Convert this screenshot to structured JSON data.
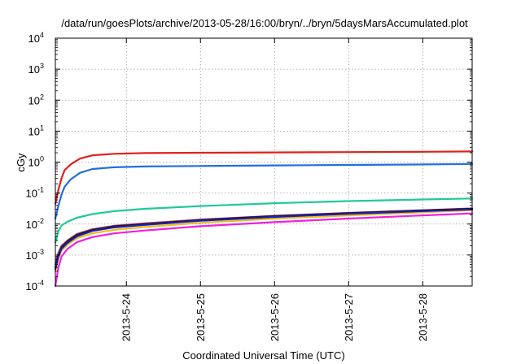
{
  "chart_data": {
    "type": "line",
    "title": "/data/run/goesPlots/archive/2013-05-28/16:00/bryn/../bryn/5daysMarsAccumulated.plot",
    "xlabel": "Coordinated Universal Time (UTC)",
    "ylabel": "cGy",
    "y_scale": "log",
    "ylim": [
      0.0001,
      10000
    ],
    "xlim": [
      "2013-05-23T01:00",
      "2013-05-28T16:00"
    ],
    "grid": true,
    "legend": "none",
    "y_ticks": [
      {
        "base": "10",
        "exp": "-4"
      },
      {
        "base": "10",
        "exp": "-3"
      },
      {
        "base": "10",
        "exp": "-2"
      },
      {
        "base": "10",
        "exp": "-1"
      },
      {
        "base": "10",
        "exp": "0"
      },
      {
        "base": "10",
        "exp": "1"
      },
      {
        "base": "10",
        "exp": "2"
      },
      {
        "base": "10",
        "exp": "3"
      },
      {
        "base": "10",
        "exp": "4"
      }
    ],
    "x_ticks": [
      {
        "label": "2013-5-24",
        "date": "2013-05-24T00:00"
      },
      {
        "label": "2013-5-25",
        "date": "2013-05-25T00:00"
      },
      {
        "label": "2013-5-26",
        "date": "2013-05-26T00:00"
      },
      {
        "label": "2013-5-27",
        "date": "2013-05-27T00:00"
      },
      {
        "label": "2013-5-28",
        "date": "2013-05-28T00:00"
      }
    ],
    "series": [
      {
        "color": "#e3201c",
        "points": [
          [
            "2013-05-23T01:00",
            0.045
          ],
          [
            "2013-05-23T02:00",
            0.13
          ],
          [
            "2013-05-23T03:00",
            0.3
          ],
          [
            "2013-05-23T04:00",
            0.55
          ],
          [
            "2013-05-23T06:00",
            0.85
          ],
          [
            "2013-05-23T09:00",
            1.3
          ],
          [
            "2013-05-23T13:00",
            1.65
          ],
          [
            "2013-05-23T20:00",
            1.85
          ],
          [
            "2013-05-24T06:00",
            1.95
          ],
          [
            "2013-05-25T00:00",
            2.0
          ],
          [
            "2013-05-26T00:00",
            2.05
          ],
          [
            "2013-05-27T00:00",
            2.1
          ],
          [
            "2013-05-28T00:00",
            2.15
          ],
          [
            "2013-05-28T16:00",
            2.2
          ]
        ]
      },
      {
        "color": "#1f6fe0",
        "points": [
          [
            "2013-05-23T01:00",
            0.015
          ],
          [
            "2013-05-23T02:00",
            0.04
          ],
          [
            "2013-05-23T03:00",
            0.09
          ],
          [
            "2013-05-23T04:00",
            0.16
          ],
          [
            "2013-05-23T06:00",
            0.28
          ],
          [
            "2013-05-23T09:00",
            0.45
          ],
          [
            "2013-05-23T13:00",
            0.6
          ],
          [
            "2013-05-23T20:00",
            0.68
          ],
          [
            "2013-05-24T06:00",
            0.72
          ],
          [
            "2013-05-25T00:00",
            0.75
          ],
          [
            "2013-05-26T00:00",
            0.78
          ],
          [
            "2013-05-27T00:00",
            0.81
          ],
          [
            "2013-05-28T00:00",
            0.84
          ],
          [
            "2013-05-28T16:00",
            0.87
          ]
        ]
      },
      {
        "color": "#20c99a",
        "points": [
          [
            "2013-05-23T01:00",
            0.0025
          ],
          [
            "2013-05-23T02:00",
            0.006
          ],
          [
            "2013-05-23T03:00",
            0.009
          ],
          [
            "2013-05-23T05:00",
            0.012
          ],
          [
            "2013-05-23T08:00",
            0.016
          ],
          [
            "2013-05-23T13:00",
            0.021
          ],
          [
            "2013-05-23T20:00",
            0.026
          ],
          [
            "2013-05-24T06:00",
            0.031
          ],
          [
            "2013-05-25T00:00",
            0.038
          ],
          [
            "2013-05-26T00:00",
            0.047
          ],
          [
            "2013-05-27T00:00",
            0.055
          ],
          [
            "2013-05-28T00:00",
            0.062
          ],
          [
            "2013-05-28T16:00",
            0.067
          ]
        ]
      },
      {
        "color": "#e8c020",
        "points": [
          [
            "2013-05-23T01:00",
            0.0003
          ],
          [
            "2013-05-23T02:00",
            0.0008
          ],
          [
            "2013-05-23T03:00",
            0.0014
          ],
          [
            "2013-05-23T05:00",
            0.0022
          ],
          [
            "2013-05-23T08:00",
            0.0035
          ],
          [
            "2013-05-23T13:00",
            0.005
          ],
          [
            "2013-05-23T20:00",
            0.0065
          ],
          [
            "2013-05-24T06:00",
            0.008
          ],
          [
            "2013-05-25T00:00",
            0.011
          ],
          [
            "2013-05-26T00:00",
            0.015
          ],
          [
            "2013-05-27T00:00",
            0.019
          ],
          [
            "2013-05-28T00:00",
            0.024
          ],
          [
            "2013-05-28T16:00",
            0.028
          ]
        ]
      },
      {
        "color": "#f020e0",
        "points": [
          [
            "2013-05-23T01:00",
            0.0001
          ],
          [
            "2013-05-23T02:00",
            0.0004
          ],
          [
            "2013-05-23T03:00",
            0.0009
          ],
          [
            "2013-05-23T05:00",
            0.0016
          ],
          [
            "2013-05-23T08:00",
            0.0026
          ],
          [
            "2013-05-23T13:00",
            0.0038
          ],
          [
            "2013-05-23T20:00",
            0.005
          ],
          [
            "2013-05-24T06:00",
            0.0062
          ],
          [
            "2013-05-25T00:00",
            0.0085
          ],
          [
            "2013-05-26T00:00",
            0.0115
          ],
          [
            "2013-05-27T00:00",
            0.015
          ],
          [
            "2013-05-28T00:00",
            0.019
          ],
          [
            "2013-05-28T16:00",
            0.022
          ]
        ]
      },
      {
        "color": "#c04080",
        "points": [
          [
            "2013-05-23T01:00",
            0.0005
          ],
          [
            "2013-05-23T02:00",
            0.0012
          ],
          [
            "2013-05-23T03:00",
            0.002
          ],
          [
            "2013-05-23T05:00",
            0.003
          ],
          [
            "2013-05-23T08:00",
            0.0048
          ],
          [
            "2013-05-23T13:00",
            0.0068
          ],
          [
            "2013-05-23T20:00",
            0.0088
          ],
          [
            "2013-05-24T06:00",
            0.0105
          ],
          [
            "2013-05-25T00:00",
            0.014
          ],
          [
            "2013-05-26T00:00",
            0.0185
          ],
          [
            "2013-05-27T00:00",
            0.023
          ],
          [
            "2013-05-28T00:00",
            0.028
          ],
          [
            "2013-05-28T16:00",
            0.032
          ]
        ]
      },
      {
        "color": "#1a1a1a",
        "points": [
          [
            "2013-05-23T01:00",
            0.0004
          ],
          [
            "2013-05-23T02:00",
            0.001
          ],
          [
            "2013-05-23T03:00",
            0.0018
          ],
          [
            "2013-05-23T05:00",
            0.0028
          ],
          [
            "2013-05-23T08:00",
            0.0045
          ],
          [
            "2013-05-23T13:00",
            0.0065
          ],
          [
            "2013-05-23T20:00",
            0.0084
          ],
          [
            "2013-05-24T06:00",
            0.01
          ],
          [
            "2013-05-25T00:00",
            0.0135
          ],
          [
            "2013-05-26T00:00",
            0.018
          ],
          [
            "2013-05-27T00:00",
            0.0225
          ],
          [
            "2013-05-28T00:00",
            0.0275
          ],
          [
            "2013-05-28T16:00",
            0.031
          ]
        ]
      },
      {
        "color": "#2020b0",
        "points": [
          [
            "2013-05-23T01:00",
            0.00035
          ],
          [
            "2013-05-23T02:00",
            0.0009
          ],
          [
            "2013-05-23T03:00",
            0.0016
          ],
          [
            "2013-05-23T05:00",
            0.0025
          ],
          [
            "2013-05-23T08:00",
            0.004
          ],
          [
            "2013-05-23T13:00",
            0.006
          ],
          [
            "2013-05-23T20:00",
            0.0078
          ],
          [
            "2013-05-24T06:00",
            0.0094
          ],
          [
            "2013-05-25T00:00",
            0.0128
          ],
          [
            "2013-05-26T00:00",
            0.017
          ],
          [
            "2013-05-27T00:00",
            0.0215
          ],
          [
            "2013-05-28T00:00",
            0.026
          ],
          [
            "2013-05-28T16:00",
            0.0295
          ]
        ]
      }
    ]
  }
}
